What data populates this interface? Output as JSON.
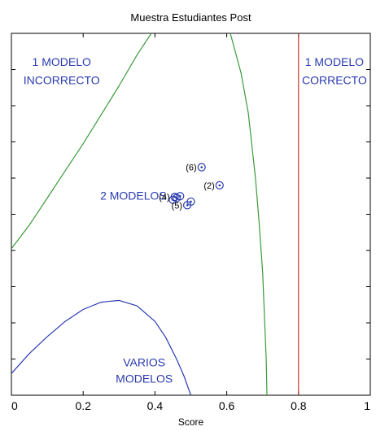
{
  "chart_data": {
    "type": "line",
    "title": "Muestra Estudiantes Post",
    "xlabel": "Score",
    "ylabel": "",
    "xlim": [
      0,
      1
    ],
    "ylim": [
      0,
      1
    ],
    "x_ticks": [
      0,
      0.2,
      0.4,
      0.6,
      0.8,
      1
    ],
    "x_tick_labels": [
      "0",
      "0.2",
      "0.4",
      "0.6",
      "0.8",
      "1"
    ],
    "y_tick_count": 10,
    "y_tick_labels_shown": false,
    "grid": false,
    "series": [
      {
        "color": "#3a9a3a",
        "x": [
          0.0,
          0.05,
          0.1,
          0.15,
          0.2,
          0.25,
          0.3,
          0.35,
          0.39
        ],
        "y": [
          0.405,
          0.47,
          0.545,
          0.62,
          0.695,
          0.775,
          0.855,
          0.94,
          1.0
        ]
      },
      {
        "color": "#3a9a3a",
        "x": [
          0.61,
          0.64,
          0.66,
          0.68,
          0.69,
          0.7,
          0.705,
          0.71,
          0.712
        ],
        "y": [
          1.0,
          0.89,
          0.78,
          0.6,
          0.48,
          0.34,
          0.22,
          0.1,
          0.0
        ]
      },
      {
        "color": "#c0392b",
        "x": [
          0.8,
          0.8
        ],
        "y": [
          0.0,
          1.0
        ]
      },
      {
        "color": "#2b3bb0",
        "x": [
          0.0,
          0.05,
          0.1,
          0.15,
          0.2,
          0.25,
          0.3,
          0.35,
          0.4,
          0.43,
          0.46,
          0.48,
          0.5
        ],
        "y": [
          0.06,
          0.115,
          0.162,
          0.204,
          0.237,
          0.257,
          0.262,
          0.247,
          0.204,
          0.16,
          0.1,
          0.055,
          0.0
        ]
      }
    ],
    "points": [
      {
        "x": 0.53,
        "y": 0.63,
        "label": "(6)"
      },
      {
        "x": 0.58,
        "y": 0.58,
        "label": "(2)"
      },
      {
        "x": 0.47,
        "y": 0.55,
        "label": ""
      },
      {
        "x": 0.46,
        "y": 0.545,
        "label": ""
      },
      {
        "x": 0.455,
        "y": 0.548,
        "label": "(4)"
      },
      {
        "x": 0.45,
        "y": 0.54,
        "label": ""
      },
      {
        "x": 0.5,
        "y": 0.535,
        "label": ""
      },
      {
        "x": 0.49,
        "y": 0.525,
        "label": "(5)"
      }
    ],
    "annotations": [
      {
        "text": "1 MODELO",
        "x": 0.14,
        "y": 0.91,
        "color": "#2b3bb0"
      },
      {
        "text": "INCORRECTO",
        "x": 0.14,
        "y": 0.86,
        "color": "#2b3bb0"
      },
      {
        "text": "1 MODELO",
        "x": 0.9,
        "y": 0.91,
        "color": "#2b3bb0"
      },
      {
        "text": "CORRECTO",
        "x": 0.9,
        "y": 0.86,
        "color": "#2b3bb0"
      },
      {
        "text": "2 MODELOS",
        "x": 0.34,
        "y": 0.54,
        "color": "#2b3bb0"
      },
      {
        "text": "VARIOS",
        "x": 0.37,
        "y": 0.08,
        "color": "#2b3bb0"
      },
      {
        "text": "MODELOS",
        "x": 0.37,
        "y": 0.035,
        "color": "#2b3bb0"
      }
    ],
    "point_color": "#2b3bb0"
  }
}
